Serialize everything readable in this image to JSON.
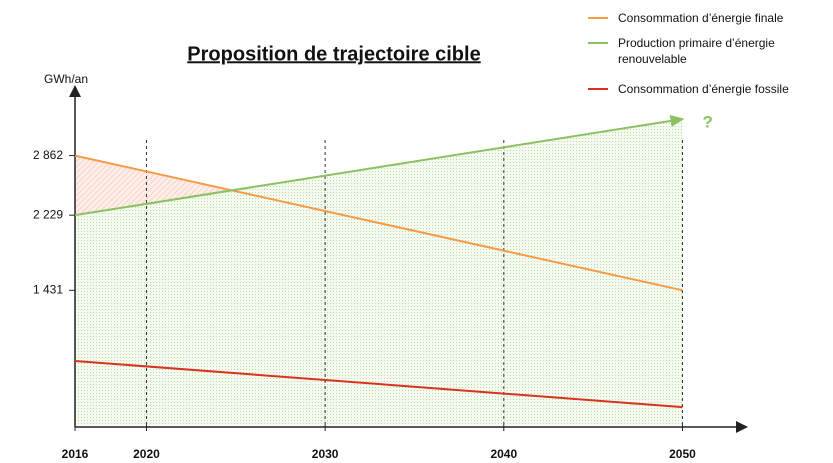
{
  "chart_data": {
    "type": "line",
    "title": "Proposition de trajectoire cible",
    "y_label": "GWh/an",
    "annotation": "?",
    "x": [
      2016,
      2050
    ],
    "series": [
      {
        "name": "Consommation d’énergie finale",
        "color": "#f79a46",
        "values": [
          2862,
          1431
        ]
      },
      {
        "name": "Production primaire d’énergie renouvelable",
        "color": "#8cc063",
        "values": [
          2229,
          3250
        ]
      },
      {
        "name": "Consommation d’énergie fossile",
        "color": "#d9321f",
        "values": [
          680,
          190
        ]
      }
    ],
    "xlim": [
      2016,
      2053.5
    ],
    "xticks": [
      2016,
      2020,
      2030,
      2040,
      2050
    ],
    "ylim": [
      0,
      3580
    ],
    "yticks": [
      {
        "value": 2862,
        "label": "2 862"
      },
      {
        "value": 2229,
        "label": "2 229"
      },
      {
        "value": 1431,
        "label": "1 431"
      }
    ],
    "grid": true
  }
}
